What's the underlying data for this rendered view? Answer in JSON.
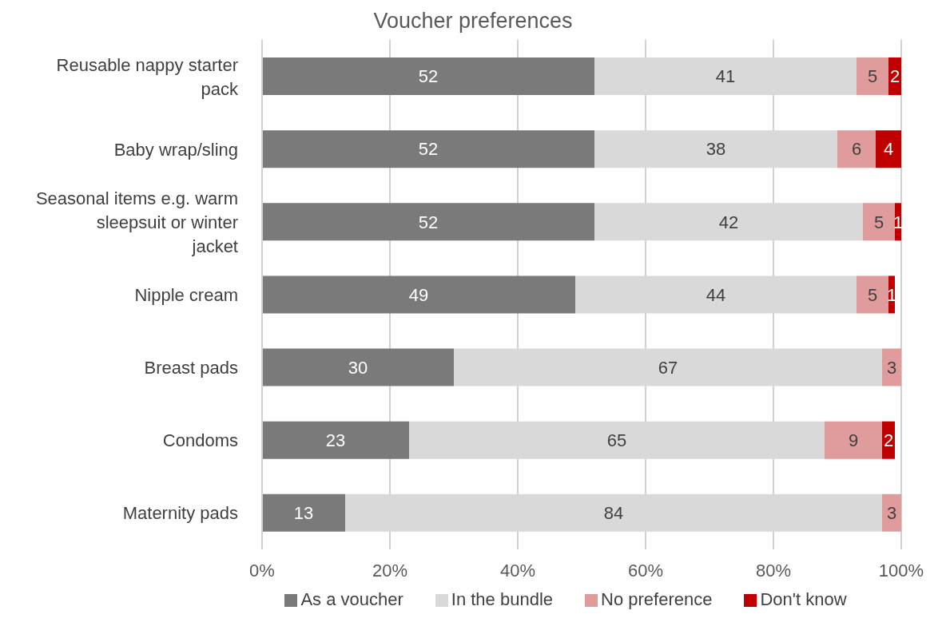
{
  "chart_data": {
    "type": "bar",
    "orientation": "horizontal",
    "stacked": true,
    "title": "Voucher preferences",
    "categories": [
      "Reusable nappy starter pack",
      "Baby wrap/sling",
      "Seasonal items e.g. warm sleepsuit or winter jacket",
      "Nipple cream",
      "Breast pads",
      "Condoms",
      "Maternity pads"
    ],
    "series": [
      {
        "name": "As a voucher",
        "color": "#7a7a7a",
        "values": [
          52,
          52,
          52,
          49,
          30,
          23,
          13
        ]
      },
      {
        "name": "In the bundle",
        "color": "#d9d9d9",
        "values": [
          41,
          38,
          42,
          44,
          67,
          65,
          84
        ]
      },
      {
        "name": "No preference",
        "color": "#e09c9c",
        "values": [
          5,
          6,
          5,
          5,
          3,
          9,
          3
        ]
      },
      {
        "name": "Don't know",
        "color": "#c00000",
        "values": [
          2,
          4,
          1,
          1,
          null,
          2,
          null
        ]
      }
    ],
    "xlim": [
      0,
      100
    ],
    "xticks": [
      {
        "value": 0,
        "label": "0%"
      },
      {
        "value": 20,
        "label": "20%"
      },
      {
        "value": 40,
        "label": "40%"
      },
      {
        "value": 60,
        "label": "60%"
      },
      {
        "value": 80,
        "label": "80%"
      },
      {
        "value": 100,
        "label": "100%"
      }
    ],
    "grid": "x",
    "legend": "bottom",
    "data_labels": true
  }
}
